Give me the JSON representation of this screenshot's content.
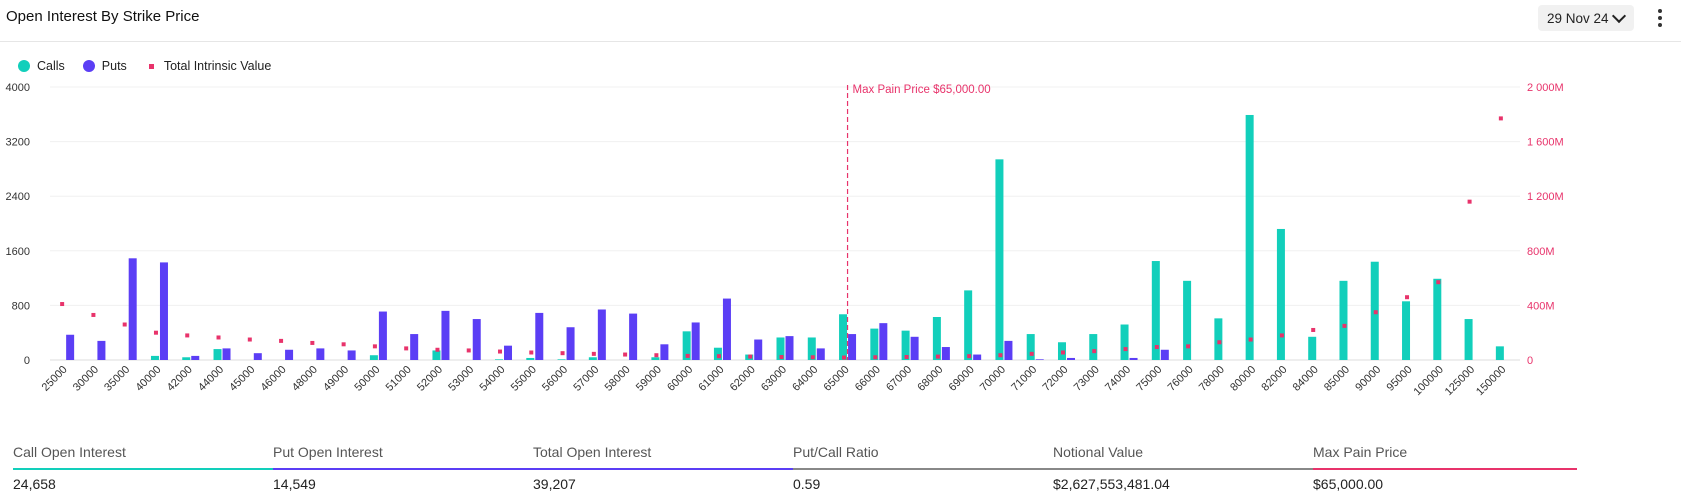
{
  "header": {
    "title": "Open Interest By Strike Price",
    "date_value": "29 Nov 24"
  },
  "legend": [
    {
      "label": "Calls",
      "color": "#12cfbb",
      "shape": "circle"
    },
    {
      "label": "Puts",
      "color": "#5b3ef5",
      "shape": "circle"
    },
    {
      "label": "Total Intrinsic Value",
      "color": "#e8336b",
      "shape": "square"
    }
  ],
  "chart_data": {
    "type": "bar",
    "categories": [
      "25000",
      "30000",
      "35000",
      "40000",
      "42000",
      "44000",
      "45000",
      "46000",
      "48000",
      "49000",
      "50000",
      "51000",
      "52000",
      "53000",
      "54000",
      "55000",
      "56000",
      "57000",
      "58000",
      "59000",
      "60000",
      "61000",
      "62000",
      "63000",
      "64000",
      "65000",
      "66000",
      "67000",
      "68000",
      "69000",
      "70000",
      "71000",
      "72000",
      "73000",
      "74000",
      "75000",
      "76000",
      "78000",
      "80000",
      "82000",
      "84000",
      "85000",
      "90000",
      "95000",
      "100000",
      "125000",
      "150000"
    ],
    "series": [
      {
        "name": "Calls",
        "axis": "left",
        "color": "#12cfbb",
        "values": [
          0,
          0,
          0,
          60,
          40,
          160,
          0,
          0,
          0,
          0,
          70,
          0,
          140,
          0,
          10,
          30,
          10,
          40,
          0,
          40,
          420,
          180,
          80,
          330,
          330,
          670,
          460,
          430,
          630,
          1020,
          2940,
          380,
          260,
          380,
          520,
          1450,
          1160,
          610,
          3590,
          1920,
          340,
          1160,
          1440,
          860,
          1190,
          600,
          200
        ]
      },
      {
        "name": "Puts",
        "axis": "left",
        "color": "#5b3ef5",
        "values": [
          370,
          280,
          1490,
          1430,
          60,
          170,
          100,
          150,
          170,
          140,
          710,
          380,
          720,
          600,
          210,
          690,
          480,
          740,
          680,
          230,
          550,
          900,
          300,
          350,
          170,
          380,
          540,
          340,
          190,
          80,
          280,
          10,
          30,
          0,
          30,
          150,
          0,
          0,
          0,
          0,
          0,
          0,
          0,
          0,
          0,
          0,
          0
        ]
      },
      {
        "name": "Total Intrinsic Value",
        "axis": "right",
        "color": "#e8336b",
        "style": "marker",
        "values": [
          410000000,
          330000000,
          260000000,
          200000000,
          180000000,
          165000000,
          150000000,
          140000000,
          125000000,
          115000000,
          100000000,
          85000000,
          75000000,
          70000000,
          62000000,
          55000000,
          50000000,
          45000000,
          40000000,
          35000000,
          30000000,
          28000000,
          25000000,
          22000000,
          20000000,
          18000000,
          20000000,
          22000000,
          25000000,
          28000000,
          35000000,
          45000000,
          55000000,
          65000000,
          80000000,
          95000000,
          100000000,
          130000000,
          150000000,
          180000000,
          220000000,
          250000000,
          350000000,
          460000000,
          570000000,
          1160000000,
          1770000000
        ]
      }
    ],
    "y_left": {
      "ticks": [
        "0",
        "800",
        "1600",
        "2400",
        "3200",
        "4000"
      ],
      "range": [
        0,
        4000
      ]
    },
    "y_right": {
      "ticks": [
        "0",
        "400M",
        "800M",
        "1 200M",
        "1 600M",
        "2 000M"
      ],
      "range": [
        0,
        2000000000
      ]
    },
    "annotation": {
      "label": "Max Pain Price $65,000.00",
      "category": "65000",
      "color": "#e8336b"
    },
    "grid": true,
    "legend_position": "top-left"
  },
  "stats": [
    {
      "label": "Call Open Interest",
      "value": "24,658",
      "color": "#12cfbb"
    },
    {
      "label": "Put Open Interest",
      "value": "14,549",
      "color": "#5b3ef5"
    },
    {
      "label": "Total Open Interest",
      "value": "39,207",
      "color": "#5b3ef5"
    },
    {
      "label": "Put/Call Ratio",
      "value": "0.59",
      "color": "#888888"
    },
    {
      "label": "Notional Value",
      "value": "$2,627,553,481.04",
      "color": "#888888"
    },
    {
      "label": "Max Pain Price",
      "value": "$65,000.00",
      "color": "#e8336b"
    }
  ]
}
